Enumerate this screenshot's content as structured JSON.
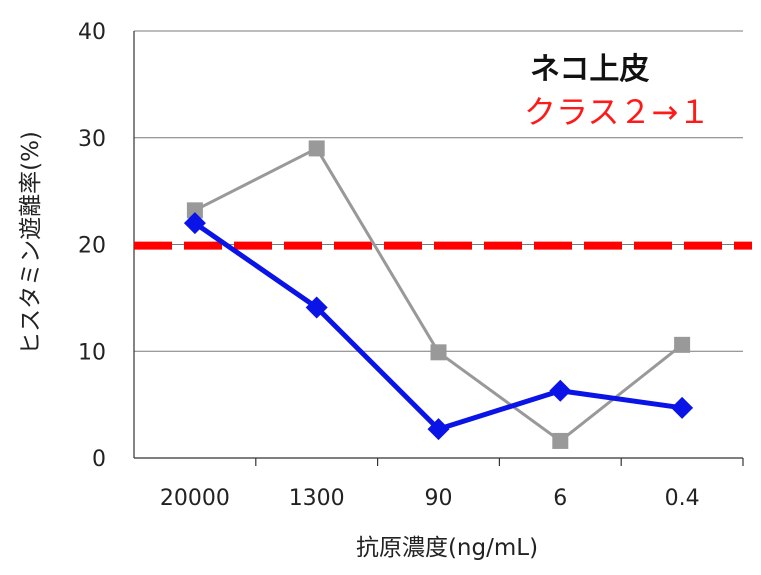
{
  "chart_data": {
    "type": "line",
    "xlabel": "抗原濃度(ng/mL)",
    "ylabel": "ヒスタミン遊離率(%)",
    "categories": [
      "20000",
      "1300",
      "90",
      "6",
      "0.4"
    ],
    "ylim": [
      0,
      40
    ],
    "yticks": [
      0,
      10,
      20,
      30,
      40
    ],
    "grid": true,
    "series": [
      {
        "values": [
          23.2,
          29.0,
          9.9,
          1.6,
          10.6
        ],
        "color": "#999999",
        "marker": "square"
      },
      {
        "values": [
          22.0,
          14.1,
          2.7,
          6.3,
          4.7
        ],
        "color": "#0a14e6",
        "marker": "diamond"
      }
    ],
    "threshold": {
      "value": 19.9,
      "color": "#ff0000",
      "style": "dashed"
    },
    "annotation": {
      "title": "ネコ上皮",
      "subtitle": "クラス２→１"
    }
  }
}
